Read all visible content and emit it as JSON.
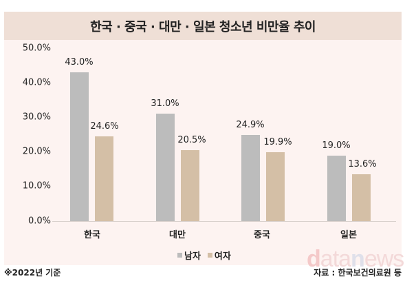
{
  "title": "한국 · 중국 · 대만 · 일본 청소년 비만율 추이",
  "footnote": "※2022년 기준",
  "source": "자료 : 한국보건의료원 등",
  "watermark": {
    "d": "d",
    "ata": "ata",
    "n": "n",
    "ews": "ews"
  },
  "legend": [
    {
      "label": "남자",
      "color": "#bcbcbc"
    },
    {
      "label": "여자",
      "color": "#d4bfa6"
    }
  ],
  "y_ticks": [
    "50.0%",
    "40.0%",
    "30.0%",
    "20.0%",
    "10.0%",
    "0.0%"
  ],
  "categories": [
    "한국",
    "대만",
    "중국",
    "일본"
  ],
  "value_labels": {
    "male": [
      "43.0%",
      "31.0%",
      "24.9%",
      "19.0%"
    ],
    "female": [
      "24.6%",
      "20.5%",
      "19.9%",
      "13.6%"
    ]
  },
  "chart_data": {
    "type": "bar",
    "title": "한국 · 중국 · 대만 · 일본 청소년 비만율 추이",
    "categories": [
      "한국",
      "대만",
      "중국",
      "일본"
    ],
    "series": [
      {
        "name": "남자",
        "values": [
          43.0,
          31.0,
          24.9,
          19.0
        ],
        "color": "#bcbcbc"
      },
      {
        "name": "여자",
        "values": [
          24.6,
          20.5,
          19.9,
          13.6
        ],
        "color": "#d4bfa6"
      }
    ],
    "xlabel": "",
    "ylabel": "",
    "ylim": [
      0,
      50
    ],
    "y_tick_labels": [
      "0.0%",
      "10.0%",
      "20.0%",
      "30.0%",
      "40.0%",
      "50.0%"
    ],
    "grid": false,
    "legend_position": "bottom",
    "annotations": [
      "※2022년 기준",
      "자료 : 한국보건의료원 등"
    ]
  }
}
